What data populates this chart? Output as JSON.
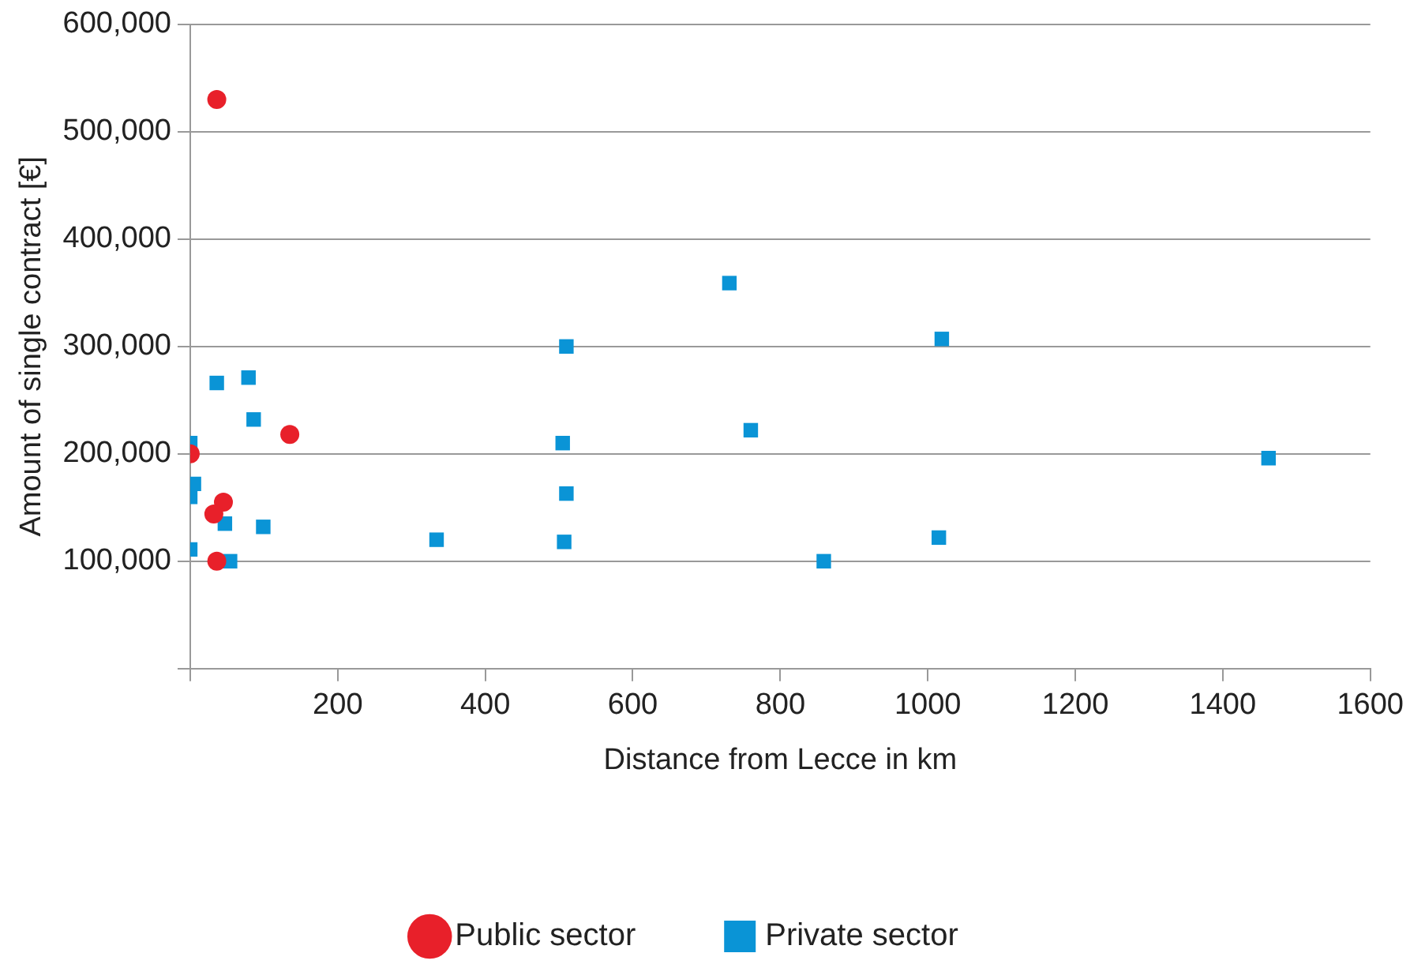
{
  "chart_data": {
    "type": "scatter",
    "xlabel": "Distance from Lecce in km",
    "ylabel": "Amount of single contract [€]",
    "xlim": [
      0,
      1600
    ],
    "xticks": [
      {
        "value": 0,
        "label": null
      },
      200,
      400,
      600,
      800,
      1000,
      1200,
      1400,
      1600
    ],
    "ylim": [
      0,
      600000
    ],
    "yticks": [
      {
        "value": 0,
        "label": null
      },
      {
        "value": 100000,
        "label": "100,000"
      },
      {
        "value": 200000,
        "label": "200,000"
      },
      {
        "value": 300000,
        "label": "300,000"
      },
      {
        "value": 400000,
        "label": "400,000"
      },
      {
        "value": 500000,
        "label": "500,000"
      },
      {
        "value": 600000,
        "label": "600,000"
      }
    ],
    "grid": "y",
    "legend": "bottom",
    "series": [
      {
        "name": "Public sector",
        "color": "#e8202a",
        "marker": "circle",
        "x": [
          36,
          0,
          135,
          45,
          32,
          36
        ],
        "values": [
          530000,
          200000,
          218000,
          155000,
          144000,
          100000
        ]
      },
      {
        "name": "Private sector",
        "color": "#0a94d6",
        "marker": "square",
        "x": [
          0,
          36,
          79,
          86,
          0,
          5,
          0,
          47,
          99,
          54,
          334,
          510,
          505,
          510,
          507,
          731,
          760,
          859,
          1019,
          1015,
          1462
        ],
        "values": [
          210000,
          266000,
          271000,
          232000,
          160000,
          172000,
          111000,
          135000,
          132000,
          100000,
          120000,
          300000,
          210000,
          163000,
          118000,
          359000,
          222000,
          100000,
          307000,
          122000,
          196000
        ]
      }
    ]
  }
}
